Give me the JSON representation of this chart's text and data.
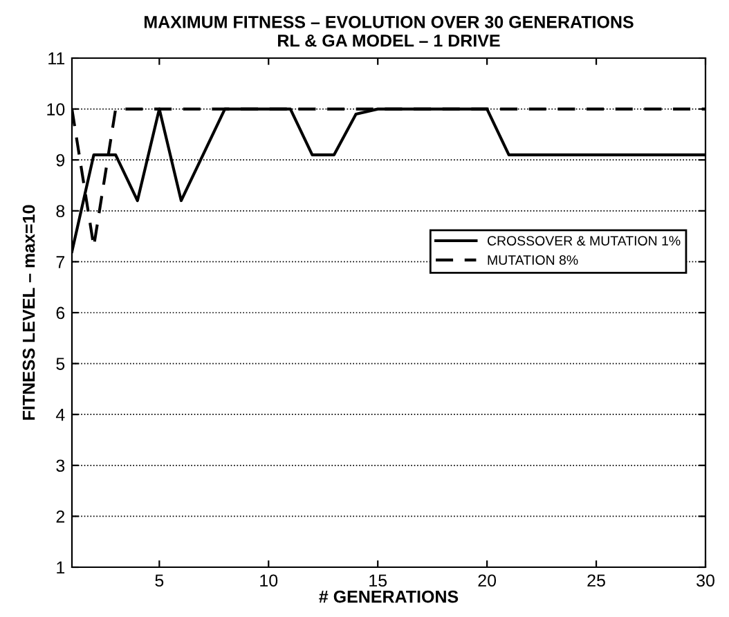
{
  "chart_data": {
    "type": "line",
    "title": "MAXIMUM FITNESS – EVOLUTION OVER 30 GENERATIONS\nRL & GA MODEL – 1 DRIVE",
    "xlabel": "# GENERATIONS",
    "ylabel": "FITNESS LEVEL – max=10",
    "x": [
      1,
      2,
      3,
      4,
      5,
      6,
      7,
      8,
      9,
      10,
      11,
      12,
      13,
      14,
      15,
      16,
      17,
      18,
      19,
      20,
      21,
      22,
      23,
      24,
      25,
      26,
      27,
      28,
      29,
      30
    ],
    "series": [
      {
        "name": "CROSSOVER & MUTATION 1%",
        "color": "#000000",
        "line_style": "solid",
        "values": [
          7.2,
          9.1,
          9.1,
          8.2,
          10,
          8.2,
          9.1,
          10,
          10,
          10,
          10,
          9.1,
          9.1,
          9.9,
          10,
          10,
          10,
          10,
          10,
          10,
          9.1,
          9.1,
          9.1,
          9.1,
          9.1,
          9.1,
          9.1,
          9.1,
          9.1,
          9.1
        ]
      },
      {
        "name": "MUTATION 8%",
        "color": "#000000",
        "line_style": "dashed",
        "values": [
          10,
          7.3,
          10,
          10,
          10,
          10,
          10,
          10,
          10,
          10,
          10,
          10,
          10,
          10,
          10,
          10,
          10,
          10,
          10,
          10,
          10,
          10,
          10,
          10,
          10,
          10,
          10,
          10,
          10,
          10
        ]
      }
    ],
    "xlim": [
      1,
      30
    ],
    "xticks": [
      5,
      10,
      15,
      20,
      25,
      30
    ],
    "ylim": [
      1,
      11
    ],
    "yticks": [
      1,
      2,
      3,
      4,
      5,
      6,
      7,
      8,
      9,
      10,
      11
    ],
    "grid": "y",
    "legend": "right",
    "marker": "none"
  }
}
